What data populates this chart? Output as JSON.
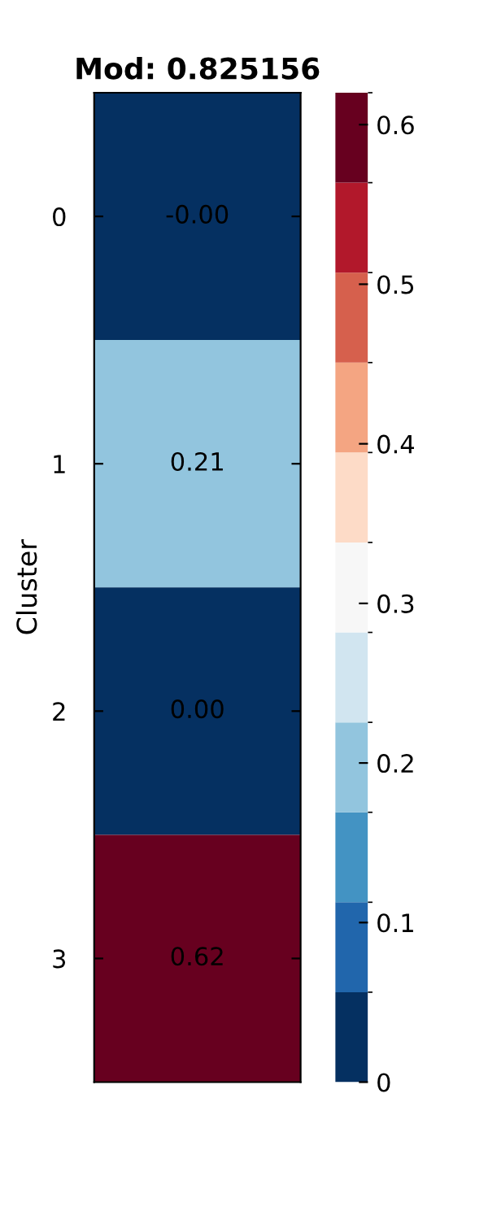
{
  "chart_data": {
    "type": "heatmap",
    "title": "Mod: 0.825156",
    "ylabel": "Cluster",
    "categories": [
      null
    ],
    "y_categories": [
      "0",
      "1",
      "2",
      "3"
    ],
    "cells": [
      [
        0
      ],
      [
        0.21
      ],
      [
        0
      ],
      [
        0.62
      ]
    ],
    "cell_labels": [
      [
        "-0.00"
      ],
      [
        "0.21"
      ],
      [
        "0.00"
      ],
      [
        "0.62"
      ]
    ],
    "colors": [
      "#053061",
      "#2166ac",
      "#4393c3",
      "#92c5de",
      "#d1e5f0",
      "#f7f7f7",
      "#fddbc7",
      "#f4a582",
      "#d6604d",
      "#b2182b",
      "#67001f"
    ],
    "clim": [
      0,
      0.62
    ],
    "cticks": [
      0,
      0.1,
      0.2,
      0.3,
      0.4,
      0.5,
      0.6
    ]
  }
}
